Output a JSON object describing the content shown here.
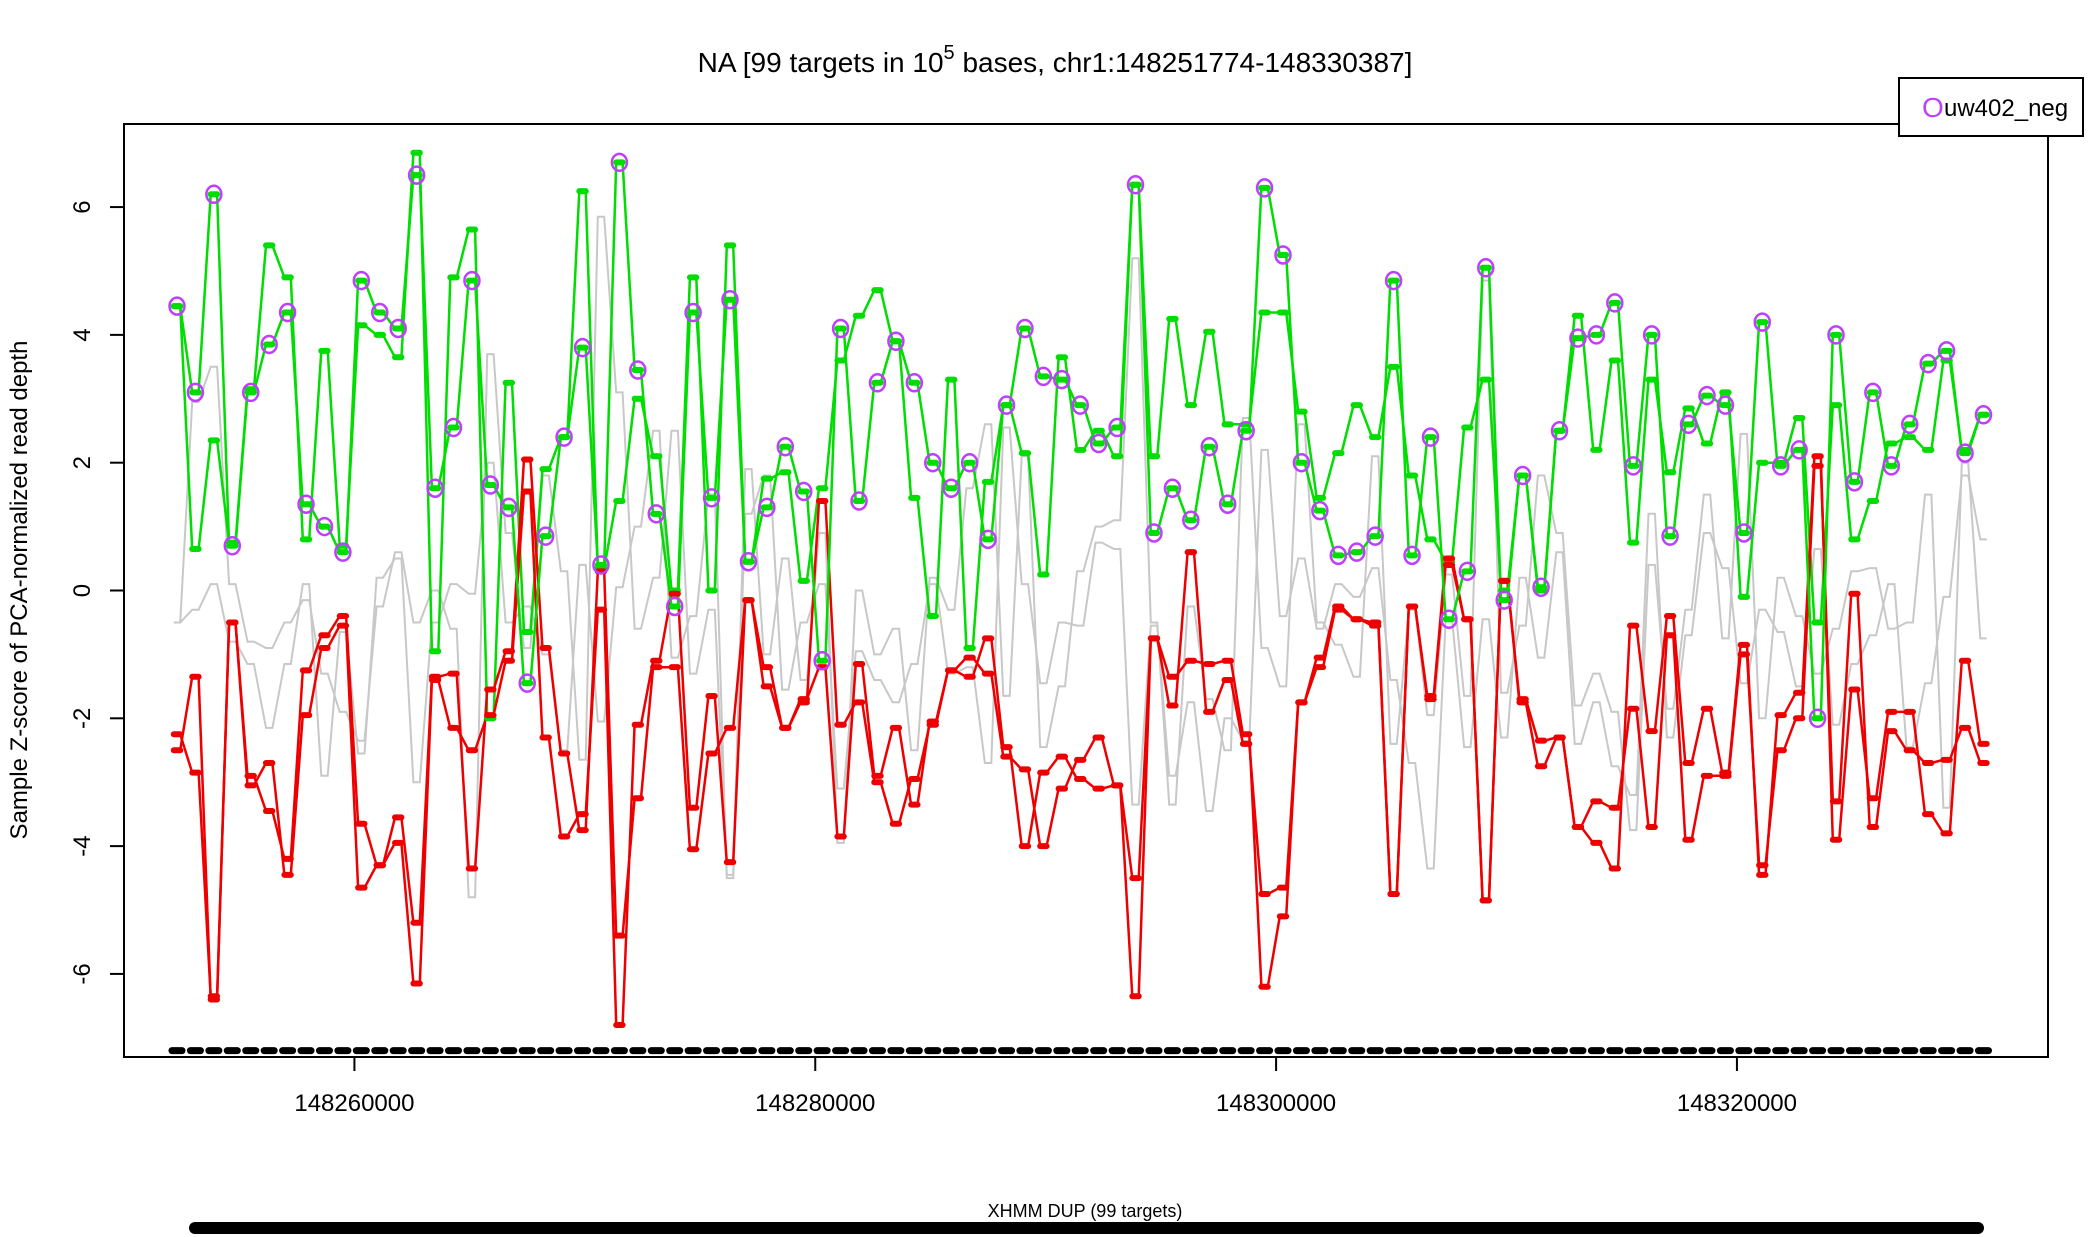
{
  "chart_data": {
    "type": "line",
    "title": "NA [99 targets in 10",
    "title_exp": "5",
    "title_rest": " bases, chr1:148251774-148330387]",
    "xlabel": "",
    "ylabel": "Sample Z-score of PCA-normalized read depth",
    "xlim": [
      148250000,
      148333500
    ],
    "ylim": [
      -7.3,
      7.3
    ],
    "xticks": [
      148260000,
      148280000,
      148300000,
      148320000
    ],
    "xtick_labels": [
      "148260000",
      "148280000",
      "148300000",
      "148320000"
    ],
    "yticks": [
      6,
      4,
      2,
      0,
      -2,
      -4,
      -6
    ],
    "ytick_labels": [
      "6",
      "4",
      "2",
      "0",
      "-2",
      "-4",
      "-6"
    ],
    "legend": {
      "position": "top-right",
      "label": "uw402_neg",
      "marker": "O"
    },
    "cnv_call_label": "XHMM DUP (99 targets)",
    "target_marker_level": -7.2,
    "colors": {
      "upper": "#00dd00",
      "lower": "#ee0000",
      "background": "#c8c8c8",
      "sample": "#bf3fff",
      "targets": "#000000"
    },
    "x_start": 148252300,
    "x_step": 800,
    "series": [
      {
        "name": "upper",
        "values": [
          4.45,
          0.65,
          2.35,
          0.75,
          3.15,
          5.4,
          4.9,
          0.8,
          3.75,
          0.7,
          4.15,
          4.0,
          3.65,
          6.85,
          -0.95,
          4.9,
          5.65,
          -2.0,
          3.25,
          -0.65,
          1.9,
          2.4,
          6.25,
          0.35,
          1.4,
          3.0,
          2.1,
          0.0,
          4.9,
          0.0,
          5.4,
          0.45,
          1.75,
          1.85,
          0.15,
          1.6,
          3.6,
          4.3,
          4.7,
          3.9,
          1.45,
          -0.4,
          3.3,
          -0.9,
          1.7,
          2.9,
          2.15,
          0.25,
          3.65,
          2.2,
          2.5,
          2.1,
          6.35,
          2.1,
          4.25,
          2.9,
          4.05,
          2.6,
          2.6,
          4.35,
          4.35,
          2.8,
          1.45,
          2.15,
          2.9,
          2.4,
          3.5,
          1.8,
          0.8,
          0.45,
          2.55,
          3.3,
          0.0,
          1.8,
          0.0,
          2.5,
          4.3,
          2.2,
          3.6,
          0.75,
          3.3,
          1.85,
          2.85,
          2.3,
          3.1,
          -0.1,
          2.0,
          2.0,
          2.7,
          -0.5,
          2.9,
          0.8,
          1.4,
          2.3,
          2.4,
          2.2,
          3.6,
          2.2,
          2.75
        ]
      },
      {
        "name": "lower",
        "values": [
          -2.25,
          -2.85,
          -6.35,
          -0.5,
          -3.05,
          -2.7,
          -4.45,
          -1.95,
          -0.9,
          -0.55,
          -4.65,
          -4.3,
          -3.95,
          -6.15,
          -1.4,
          -2.15,
          -2.5,
          -1.95,
          -1.1,
          1.55,
          -2.3,
          -3.85,
          -3.5,
          -0.3,
          -6.8,
          -2.1,
          -1.1,
          -0.05,
          -3.4,
          -1.65,
          -4.25,
          -0.15,
          -1.2,
          -2.15,
          -1.7,
          -1.2,
          -3.85,
          -1.15,
          -2.9,
          -2.15,
          -3.35,
          -2.05,
          -1.25,
          -1.05,
          -1.3,
          -2.6,
          -2.8,
          -4.0,
          -3.1,
          -2.65,
          -2.3,
          -3.05,
          -4.5,
          -0.75,
          -1.8,
          0.6,
          -1.9,
          -1.4,
          -2.4,
          -4.75,
          -4.65,
          -1.75,
          -1.2,
          -0.3,
          -0.45,
          -0.5,
          -4.75,
          -0.25,
          -1.65,
          0.5,
          -0.45,
          -4.85,
          0.15,
          -1.75,
          -2.75,
          -2.3,
          -3.7,
          -3.95,
          -4.35,
          -0.55,
          -2.2,
          -0.4,
          -2.7,
          -1.85,
          -2.85,
          -0.85,
          -4.45,
          -1.95,
          -1.6,
          2.1,
          -3.9,
          -1.55,
          -3.25,
          -1.9,
          -1.9,
          -3.5,
          -3.8,
          -1.1,
          -2.4
        ]
      },
      {
        "name": "lower_outline",
        "values": [
          -2.5,
          -1.35,
          -6.4,
          -0.5,
          -2.9,
          -3.45,
          -4.2,
          -1.25,
          -0.7,
          -0.4,
          -3.65,
          -4.3,
          -3.55,
          -5.2,
          -1.35,
          -1.3,
          -4.35,
          -1.55,
          -0.95,
          2.05,
          -0.9,
          -2.55,
          -3.75,
          0.3,
          -5.4,
          -3.25,
          -1.2,
          -1.2,
          -4.05,
          -2.55,
          -2.15,
          -0.15,
          -1.5,
          -2.15,
          -1.75,
          1.4,
          -2.1,
          -1.75,
          -3.0,
          -3.65,
          -2.95,
          -2.1,
          -1.25,
          -1.35,
          -0.75,
          -2.45,
          -4.0,
          -2.85,
          -2.6,
          -2.95,
          -3.1,
          -3.05,
          -6.35,
          -0.75,
          -1.35,
          -1.1,
          -1.15,
          -1.1,
          -2.25,
          -6.2,
          -5.1,
          -1.75,
          -1.05,
          -0.25,
          -0.45,
          -0.55,
          -4.75,
          -0.25,
          -1.7,
          0.4,
          -0.45,
          -4.85,
          0.15,
          -1.7,
          -2.35,
          -2.3,
          -3.7,
          -3.3,
          -3.4,
          -1.85,
          -3.7,
          -0.7,
          -3.9,
          -2.9,
          -2.9,
          -1.0,
          -4.3,
          -2.5,
          -2.0,
          1.95,
          -3.3,
          -0.05,
          -3.7,
          -2.2,
          -2.5,
          -2.7,
          -2.65,
          -2.15,
          -2.7
        ]
      },
      {
        "name": "upper_outline",
        "values": [
          4.45,
          3.1,
          6.2,
          0.7,
          3.1,
          3.85,
          4.35,
          1.35,
          1.0,
          0.6,
          4.85,
          4.35,
          4.1,
          6.5,
          1.6,
          2.55,
          4.85,
          1.65,
          1.3,
          -1.45,
          0.85,
          2.4,
          3.8,
          0.4,
          6.7,
          3.45,
          1.2,
          -0.25,
          4.35,
          1.45,
          4.55,
          0.45,
          1.3,
          2.25,
          1.55,
          -1.1,
          4.1,
          1.4,
          3.25,
          3.9,
          3.25,
          2.0,
          1.6,
          2.0,
          0.8,
          2.9,
          4.1,
          3.35,
          3.3,
          2.9,
          2.3,
          2.55,
          6.35,
          0.9,
          1.6,
          1.1,
          2.25,
          1.35,
          2.5,
          6.3,
          5.25,
          2.0,
          1.25,
          0.55,
          0.6,
          0.85,
          4.85,
          0.55,
          2.4,
          -0.45,
          0.3,
          5.05,
          -0.15,
          1.8,
          0.05,
          2.5,
          3.95,
          4.0,
          4.5,
          1.95,
          4.0,
          0.85,
          2.6,
          3.05,
          2.9,
          0.9,
          4.2,
          1.95,
          2.2,
          -2.0,
          4.0,
          1.7,
          3.1,
          1.95,
          2.6,
          3.55,
          3.75,
          2.15,
          2.75
        ]
      },
      {
        "name": "background_1",
        "values": [
          -0.5,
          2.95,
          3.5,
          0.1,
          -0.8,
          -0.9,
          -0.5,
          -0.15,
          -1.3,
          -1.9,
          -2.35,
          -0.25,
          0.6,
          -0.5,
          0.0,
          -0.6,
          -4.8,
          3.7,
          0.9,
          -0.9,
          1.8,
          0.3,
          -2.65,
          5.85,
          3.1,
          -0.6,
          0.2,
          2.5,
          -1.3,
          -0.3,
          -4.45,
          1.9,
          -1.0,
          0.5,
          -1.4,
          0.9,
          -3.95,
          0.0,
          -1.0,
          -0.6,
          -2.5,
          0.2,
          -0.3,
          1.6,
          2.6,
          -1.65,
          2.1,
          -2.45,
          -1.5,
          0.3,
          1.0,
          1.1,
          5.2,
          -0.5,
          -3.35,
          -0.25,
          -1.7,
          -2.5,
          2.7,
          -0.9,
          -1.5,
          2.6,
          -0.5,
          -0.85,
          -1.35,
          2.1,
          -2.4,
          -0.3,
          -1.95,
          0.25,
          -1.65,
          4.85,
          -1.6,
          -0.55,
          1.8,
          0.9,
          -1.8,
          -1.3,
          -1.9,
          -3.75,
          0.4,
          -1.85,
          -0.3,
          1.5,
          -0.75,
          2.45,
          -2.0,
          0.2,
          -0.4,
          -1.3,
          -0.6,
          0.3,
          0.35,
          -0.6,
          -0.5,
          1.5,
          -3.4,
          2.0,
          -0.75
        ]
      },
      {
        "name": "background_2",
        "values": [
          -0.5,
          -0.3,
          0.1,
          -0.8,
          -1.15,
          -2.15,
          -1.15,
          0.1,
          -2.9,
          -0.65,
          -2.55,
          0.2,
          0.5,
          -3.0,
          -0.5,
          0.1,
          -0.05,
          2.0,
          -0.5,
          -0.25,
          -1.0,
          -2.5,
          0.4,
          -2.05,
          0.05,
          1.0,
          2.5,
          -1.05,
          -0.4,
          1.5,
          -4.5,
          1.2,
          1.8,
          -1.55,
          -0.5,
          0.1,
          -3.1,
          -0.95,
          -1.4,
          -1.75,
          -1.15,
          0.1,
          -1.3,
          -1.2,
          -2.7,
          2.55,
          0.1,
          -1.45,
          -0.5,
          -0.55,
          0.75,
          0.65,
          -3.35,
          -0.55,
          -2.9,
          -1.75,
          -3.45,
          -2.0,
          -2.35,
          2.2,
          -0.4,
          0.5,
          -0.6,
          0.1,
          -0.1,
          0.35,
          -1.4,
          -2.7,
          -4.35,
          -0.45,
          -2.45,
          -0.45,
          -2.3,
          0.2,
          -1.05,
          0.6,
          -2.4,
          -1.75,
          -2.75,
          -3.2,
          1.2,
          -2.3,
          -0.7,
          0.9,
          0.35,
          -1.45,
          -0.3,
          -0.65,
          -1.5,
          0.65,
          -2.1,
          -1.15,
          -0.7,
          0.1,
          -2.45,
          -1.45,
          -0.1,
          1.8,
          0.8
        ]
      }
    ]
  }
}
